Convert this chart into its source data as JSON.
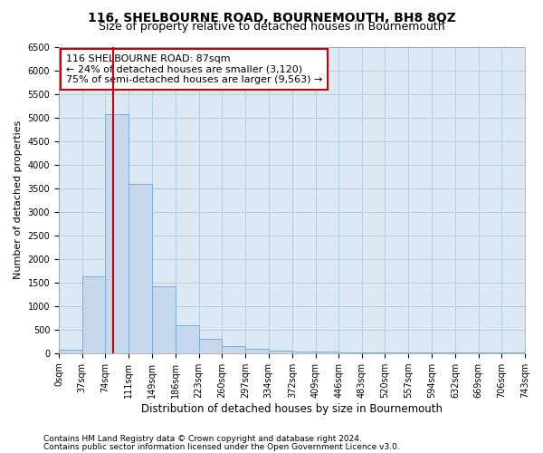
{
  "title": "116, SHELBOURNE ROAD, BOURNEMOUTH, BH8 8QZ",
  "subtitle": "Size of property relative to detached houses in Bournemouth",
  "xlabel": "Distribution of detached houses by size in Bournemouth",
  "ylabel": "Number of detached properties",
  "bin_edges": [
    0,
    37,
    74,
    111,
    149,
    186,
    223,
    260,
    297,
    334,
    372,
    409,
    446,
    483,
    520,
    557,
    594,
    632,
    669,
    706,
    743
  ],
  "bar_heights": [
    75,
    1620,
    5060,
    3580,
    1410,
    600,
    310,
    140,
    90,
    55,
    40,
    40,
    20,
    10,
    5,
    5,
    5,
    5,
    5,
    5
  ],
  "bar_color": "#c5d8ee",
  "bar_edgecolor": "#7aaed4",
  "vline_x": 87,
  "vline_color": "#cc0000",
  "ylim": [
    0,
    6500
  ],
  "yticks": [
    0,
    500,
    1000,
    1500,
    2000,
    2500,
    3000,
    3500,
    4000,
    4500,
    5000,
    5500,
    6000,
    6500
  ],
  "annotation_line1": "116 SHELBOURNE ROAD: 87sqm",
  "annotation_line2": "← 24% of detached houses are smaller (3,120)",
  "annotation_line3": "75% of semi-detached houses are larger (9,563) →",
  "annotation_box_color": "#ffffff",
  "annotation_box_edgecolor": "#cc0000",
  "background_color": "#ffffff",
  "plot_bg_color": "#dde8f5",
  "grid_color": "#b8cce0",
  "tick_labels": [
    "0sqm",
    "37sqm",
    "74sqm",
    "111sqm",
    "149sqm",
    "186sqm",
    "223sqm",
    "260sqm",
    "297sqm",
    "334sqm",
    "372sqm",
    "409sqm",
    "446sqm",
    "483sqm",
    "520sqm",
    "557sqm",
    "594sqm",
    "632sqm",
    "669sqm",
    "706sqm",
    "743sqm"
  ],
  "footer1": "Contains HM Land Registry data © Crown copyright and database right 2024.",
  "footer2": "Contains public sector information licensed under the Open Government Licence v3.0.",
  "title_fontsize": 10,
  "subtitle_fontsize": 9,
  "xlabel_fontsize": 8.5,
  "ylabel_fontsize": 8,
  "tick_fontsize": 7,
  "annotation_fontsize": 8,
  "footer_fontsize": 6.5
}
